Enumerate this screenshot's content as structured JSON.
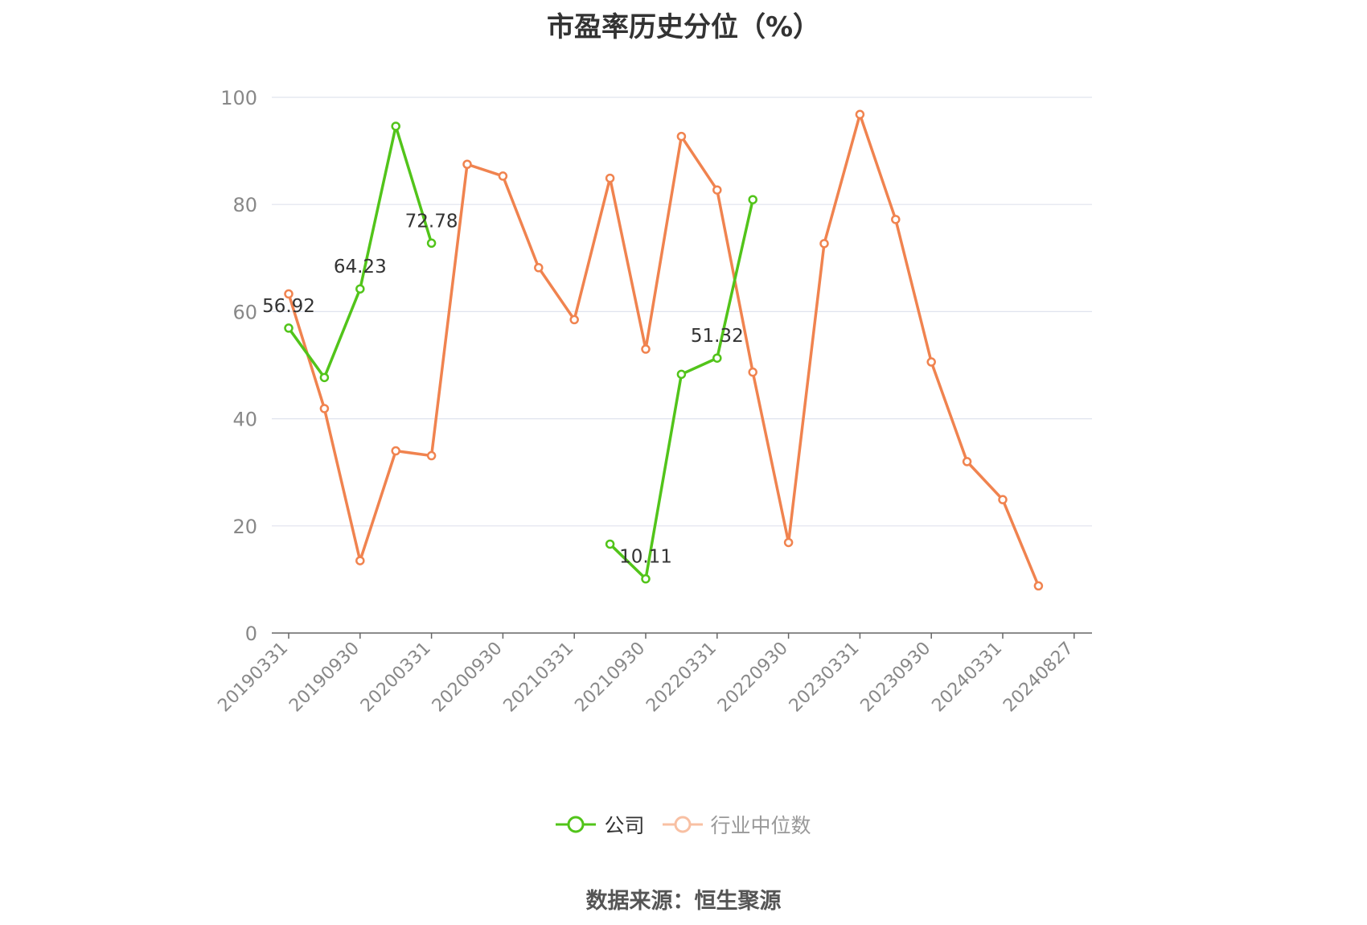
{
  "chart_data": {
    "type": "line",
    "title": "市盈率历史分位（%）",
    "ylim": [
      0,
      100
    ],
    "yticks": [
      0,
      20,
      40,
      60,
      80,
      100
    ],
    "x": [
      "20190331",
      "20190630",
      "20190930",
      "20191231",
      "20200331",
      "20200630",
      "20200930",
      "20201231",
      "20210331",
      "20210630",
      "20210930",
      "20211231",
      "20220331",
      "20220630",
      "20220930",
      "20221231",
      "20230331",
      "20230630",
      "20230930",
      "20231231",
      "20240331",
      "20240630",
      "20240827"
    ],
    "xtick_labels": [
      "20190331",
      "20190930",
      "20200331",
      "20200930",
      "20210331",
      "20210930",
      "20220331",
      "20220930",
      "20230331",
      "20230930",
      "20240331",
      "20240827"
    ],
    "grid": true,
    "legend_position": "bottom",
    "series": [
      {
        "name": "公司",
        "color": "#52c41a",
        "values": [
          56.92,
          47.7,
          64.23,
          94.6,
          72.78,
          null,
          null,
          null,
          null,
          16.6,
          10.11,
          48.3,
          51.32,
          80.9,
          null,
          null,
          null,
          null,
          null,
          null,
          null,
          null,
          null
        ],
        "data_labels": {
          "0": "56.92",
          "2": "64.23",
          "4": "72.78",
          "10": "10.11",
          "12": "51.32"
        }
      },
      {
        "name": "行业中位数",
        "color": "#f0834f",
        "values": [
          63.3,
          41.9,
          13.5,
          34.0,
          33.1,
          87.5,
          85.3,
          68.2,
          58.5,
          84.9,
          53.0,
          92.7,
          82.7,
          48.7,
          16.9,
          72.7,
          96.8,
          77.2,
          50.6,
          32.0,
          24.9,
          8.8,
          null
        ]
      }
    ]
  },
  "footer": {
    "source": "数据来源：恒生聚源"
  }
}
